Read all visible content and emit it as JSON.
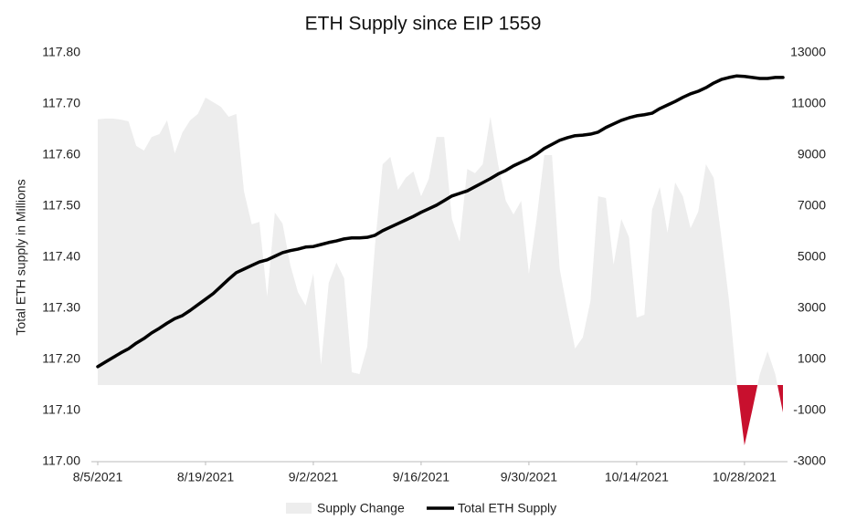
{
  "chart_data": {
    "type": "line",
    "title": "ETH Supply since EIP 1559",
    "y_label": "Total ETH supply in Millions",
    "x": [
      "2021-08-05",
      "2021-08-06",
      "2021-08-07",
      "2021-08-08",
      "2021-08-09",
      "2021-08-10",
      "2021-08-11",
      "2021-08-12",
      "2021-08-13",
      "2021-08-14",
      "2021-08-15",
      "2021-08-16",
      "2021-08-17",
      "2021-08-18",
      "2021-08-19",
      "2021-08-20",
      "2021-08-21",
      "2021-08-22",
      "2021-08-23",
      "2021-08-24",
      "2021-08-25",
      "2021-08-26",
      "2021-08-27",
      "2021-08-28",
      "2021-08-29",
      "2021-08-30",
      "2021-08-31",
      "2021-09-01",
      "2021-09-02",
      "2021-09-03",
      "2021-09-04",
      "2021-09-05",
      "2021-09-06",
      "2021-09-07",
      "2021-09-08",
      "2021-09-09",
      "2021-09-10",
      "2021-09-11",
      "2021-09-12",
      "2021-09-13",
      "2021-09-14",
      "2021-09-15",
      "2021-09-16",
      "2021-09-17",
      "2021-09-18",
      "2021-09-19",
      "2021-09-20",
      "2021-09-21",
      "2021-09-22",
      "2021-09-23",
      "2021-09-24",
      "2021-09-25",
      "2021-09-26",
      "2021-09-27",
      "2021-09-28",
      "2021-09-29",
      "2021-09-30",
      "2021-10-01",
      "2021-10-02",
      "2021-10-03",
      "2021-10-04",
      "2021-10-05",
      "2021-10-06",
      "2021-10-07",
      "2021-10-08",
      "2021-10-09",
      "2021-10-10",
      "2021-10-11",
      "2021-10-12",
      "2021-10-13",
      "2021-10-14",
      "2021-10-15",
      "2021-10-16",
      "2021-10-17",
      "2021-10-18",
      "2021-10-19",
      "2021-10-20",
      "2021-10-21",
      "2021-10-22",
      "2021-10-23",
      "2021-10-24",
      "2021-10-25",
      "2021-10-26",
      "2021-10-27",
      "2021-10-28",
      "2021-10-29",
      "2021-10-30",
      "2021-10-31",
      "2021-11-01",
      "2021-11-02"
    ],
    "xlim": [
      "2021-08-05",
      "2021-11-02"
    ],
    "xticks": [
      {
        "value": "2021-08-05",
        "label": "8/5/2021"
      },
      {
        "value": "2021-08-19",
        "label": "8/19/2021"
      },
      {
        "value": "2021-09-02",
        "label": "9/2/2021"
      },
      {
        "value": "2021-09-16",
        "label": "9/16/2021"
      },
      {
        "value": "2021-09-30",
        "label": "9/30/2021"
      },
      {
        "value": "2021-10-14",
        "label": "10/14/2021"
      },
      {
        "value": "2021-10-28",
        "label": "10/28/2021"
      }
    ],
    "ylim": [
      117.0,
      117.8
    ],
    "yticks": [
      {
        "value": 117.0,
        "label": "117.00"
      },
      {
        "value": 117.1,
        "label": "117.10"
      },
      {
        "value": 117.2,
        "label": "117.20"
      },
      {
        "value": 117.3,
        "label": "117.30"
      },
      {
        "value": 117.4,
        "label": "117.40"
      },
      {
        "value": 117.5,
        "label": "117.50"
      },
      {
        "value": 117.6,
        "label": "117.60"
      },
      {
        "value": 117.7,
        "label": "117.70"
      },
      {
        "value": 117.8,
        "label": "117.80"
      }
    ],
    "y2lim": [
      -3000,
      13000
    ],
    "y2ticks": [
      -3000,
      -1000,
      1000,
      3000,
      5000,
      7000,
      9000,
      11000,
      13000
    ],
    "legend": "bottom",
    "series": [
      {
        "name": "Supply Change",
        "type": "area",
        "axis": "y2",
        "color": "#ededed",
        "negative_color": "#c8102e",
        "values": [
          10400,
          10430,
          10430,
          10390,
          10320,
          9360,
          9180,
          9710,
          9820,
          10360,
          9070,
          9890,
          10360,
          10610,
          11250,
          11070,
          10890,
          10500,
          10610,
          7570,
          6290,
          6390,
          3460,
          6750,
          6320,
          4710,
          3640,
          3110,
          4360,
          790,
          4000,
          4790,
          4180,
          500,
          430,
          1500,
          5430,
          8640,
          8930,
          7640,
          8110,
          8360,
          7390,
          8070,
          9710,
          9710,
          6500,
          5610,
          8460,
          8290,
          8640,
          10500,
          8640,
          7210,
          6680,
          7210,
          4360,
          6500,
          9000,
          9000,
          4540,
          2930,
          1430,
          1860,
          3290,
          7390,
          7320,
          4710,
          6500,
          5790,
          2640,
          2750,
          6860,
          7750,
          5960,
          7930,
          7390,
          6140,
          6790,
          8640,
          8110,
          5790,
          3290,
          70,
          -2360,
          -1000,
          430,
          1320,
          430,
          -1070
        ]
      },
      {
        "name": "Total ETH Supply",
        "type": "line",
        "axis": "y",
        "color": "#000000",
        "values": [
          117.186,
          117.195,
          117.204,
          117.213,
          117.221,
          117.232,
          117.241,
          117.252,
          117.261,
          117.271,
          117.28,
          117.286,
          117.296,
          117.307,
          117.318,
          117.329,
          117.343,
          117.357,
          117.37,
          117.377,
          117.384,
          117.391,
          117.395,
          117.402,
          117.409,
          117.413,
          117.416,
          117.42,
          117.421,
          117.425,
          117.429,
          117.432,
          117.436,
          117.438,
          117.438,
          117.439,
          117.443,
          117.452,
          117.459,
          117.466,
          117.473,
          117.48,
          117.488,
          117.495,
          117.502,
          117.511,
          117.52,
          117.525,
          117.53,
          117.538,
          117.546,
          117.554,
          117.563,
          117.57,
          117.579,
          117.586,
          117.593,
          117.602,
          117.613,
          117.621,
          117.629,
          117.634,
          117.638,
          117.639,
          117.641,
          117.645,
          117.654,
          117.661,
          117.668,
          117.673,
          117.677,
          117.679,
          117.682,
          117.691,
          117.698,
          117.705,
          117.713,
          117.72,
          117.725,
          117.732,
          117.741,
          117.748,
          117.752,
          117.755,
          117.754,
          117.752,
          117.75,
          117.75,
          117.752,
          117.752
        ]
      }
    ]
  }
}
